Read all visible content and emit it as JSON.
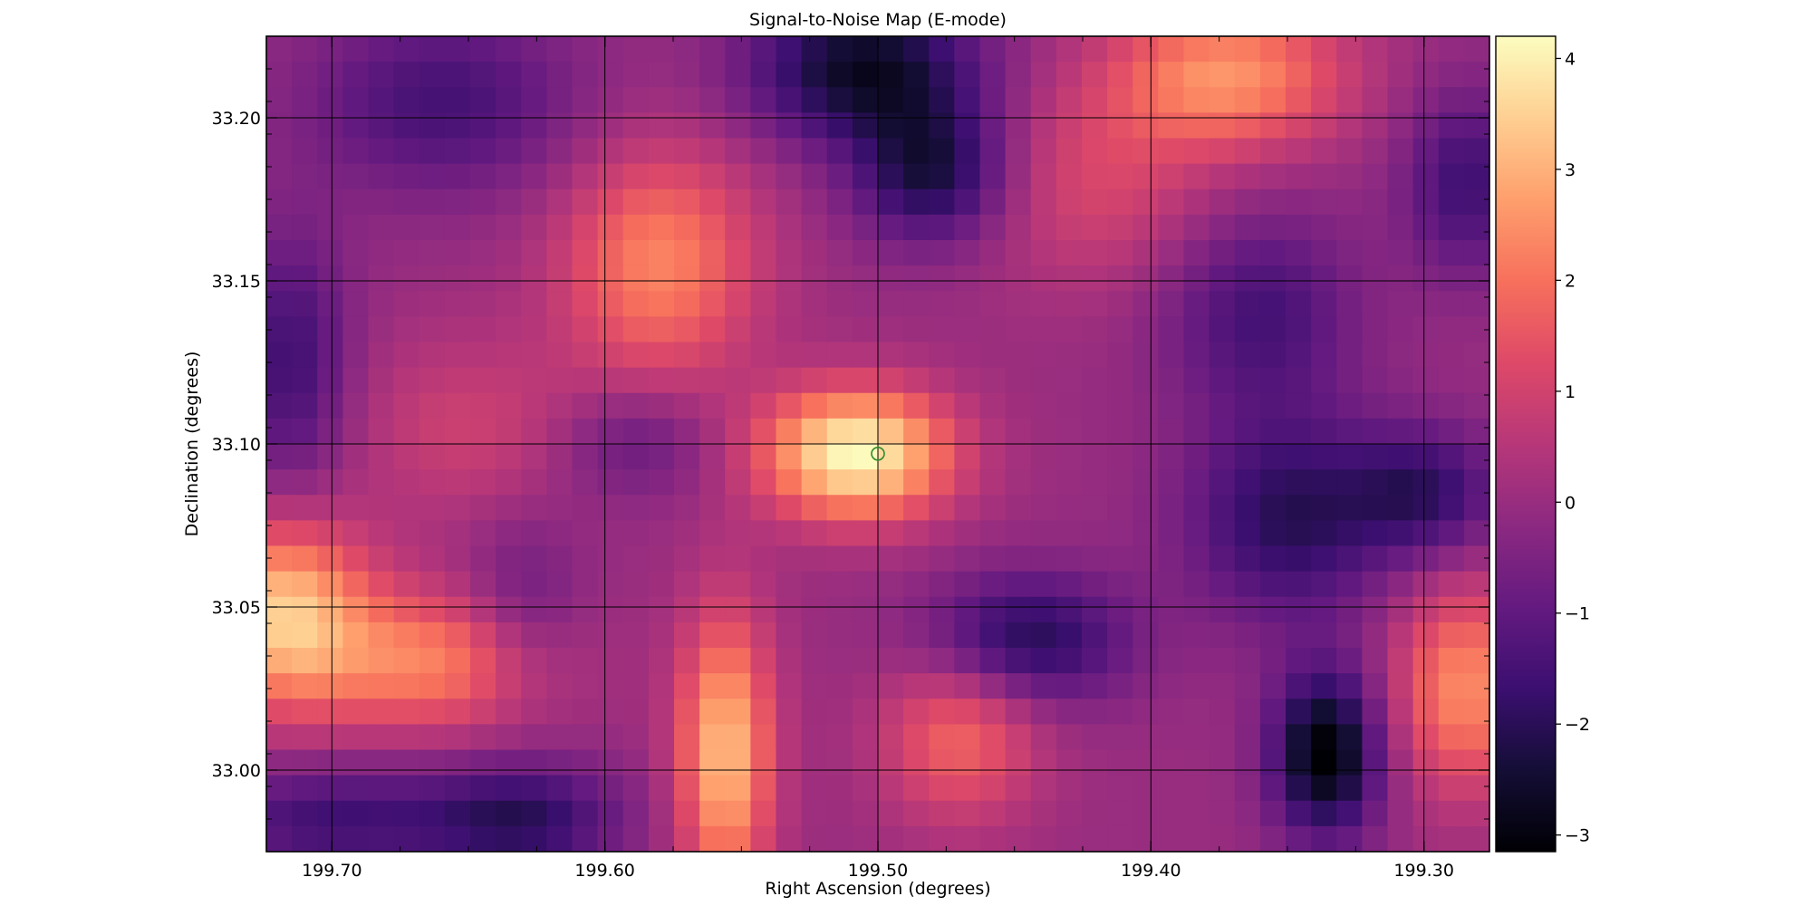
{
  "chart_data": {
    "type": "heatmap",
    "title": "Signal-to-Noise Map (E-mode)",
    "xlabel": "Right Ascension (degrees)",
    "ylabel": "Declination (degrees)",
    "xlim": [
      199.724,
      199.276
    ],
    "ylim": [
      32.975,
      33.225
    ],
    "x_ticks": [
      199.7,
      199.6,
      199.5,
      199.4,
      199.3
    ],
    "x_tick_labels": [
      "199.70",
      "199.60",
      "199.50",
      "199.40",
      "199.30"
    ],
    "y_ticks": [
      33.0,
      33.05,
      33.1,
      33.15,
      33.2
    ],
    "y_tick_labels": [
      "33.00",
      "33.05",
      "33.10",
      "33.15",
      "33.20"
    ],
    "grid": true,
    "colormap": "magma",
    "colorbar": {
      "range": [
        -3.15,
        4.2
      ],
      "ticks": [
        -3,
        -2,
        -1,
        0,
        1,
        2,
        3,
        4
      ],
      "tick_labels": [
        "−3",
        "−2",
        "−1",
        "0",
        "1",
        "2",
        "3",
        "4"
      ]
    },
    "grid_resolution": {
      "columns": 48,
      "rows": 32
    },
    "peak_marker": {
      "ra": 199.5,
      "dec": 33.097,
      "color": "#2e8b2e",
      "shape": "open-circle"
    },
    "features": [
      {
        "ra": 199.508,
        "dec": 33.097,
        "snr": 4.2,
        "sigma_ra": 0.024,
        "sigma_dec": 0.014
      },
      {
        "ra": 199.556,
        "dec": 33.005,
        "snr": 3.2,
        "sigma_ra": 0.012,
        "sigma_dec": 0.03
      },
      {
        "ra": 199.718,
        "dec": 33.048,
        "snr": 3.3,
        "sigma_ra": 0.022,
        "sigma_dec": 0.02
      },
      {
        "ra": 199.664,
        "dec": 33.033,
        "snr": 2.2,
        "sigma_ra": 0.03,
        "sigma_dec": 0.015
      },
      {
        "ra": 199.58,
        "dec": 33.155,
        "snr": 2.3,
        "sigma_ra": 0.025,
        "sigma_dec": 0.025
      },
      {
        "ra": 199.47,
        "dec": 33.01,
        "snr": 1.8,
        "sigma_ra": 0.02,
        "sigma_dec": 0.018
      },
      {
        "ra": 199.372,
        "dec": 33.213,
        "snr": 2.5,
        "sigma_ra": 0.03,
        "sigma_dec": 0.016
      },
      {
        "ra": 199.285,
        "dec": 33.025,
        "snr": 2.4,
        "sigma_ra": 0.018,
        "sigma_dec": 0.022
      },
      {
        "ra": 199.42,
        "dec": 33.18,
        "snr": 1.1,
        "sigma_ra": 0.03,
        "sigma_dec": 0.022
      },
      {
        "ra": 199.65,
        "dec": 33.105,
        "snr": 0.9,
        "sigma_ra": 0.03,
        "sigma_dec": 0.02
      },
      {
        "ra": 199.336,
        "dec": 33.005,
        "snr": -3.2,
        "sigma_ra": 0.014,
        "sigma_dec": 0.018
      },
      {
        "ra": 199.505,
        "dec": 33.215,
        "snr": -2.7,
        "sigma_ra": 0.03,
        "sigma_dec": 0.016
      },
      {
        "ra": 199.48,
        "dec": 33.183,
        "snr": -2.3,
        "sigma_ra": 0.02,
        "sigma_dec": 0.015
      },
      {
        "ra": 199.445,
        "dec": 33.04,
        "snr": -2.1,
        "sigma_ra": 0.026,
        "sigma_dec": 0.014
      },
      {
        "ra": 199.35,
        "dec": 33.077,
        "snr": -2.0,
        "sigma_ra": 0.026,
        "sigma_dec": 0.022
      },
      {
        "ra": 199.3,
        "dec": 33.085,
        "snr": -1.8,
        "sigma_ra": 0.02,
        "sigma_dec": 0.014
      },
      {
        "ra": 199.36,
        "dec": 33.14,
        "snr": -1.5,
        "sigma_ra": 0.025,
        "sigma_dec": 0.022
      },
      {
        "ra": 199.7,
        "dec": 32.985,
        "snr": -1.6,
        "sigma_ra": 0.035,
        "sigma_dec": 0.012
      },
      {
        "ra": 199.63,
        "dec": 32.985,
        "snr": -1.9,
        "sigma_ra": 0.025,
        "sigma_dec": 0.012
      },
      {
        "ra": 199.66,
        "dec": 33.205,
        "snr": -1.5,
        "sigma_ra": 0.035,
        "sigma_dec": 0.02
      },
      {
        "ra": 199.715,
        "dec": 33.125,
        "snr": -1.6,
        "sigma_ra": 0.015,
        "sigma_dec": 0.028
      },
      {
        "ra": 199.285,
        "dec": 33.18,
        "snr": -1.6,
        "sigma_ra": 0.016,
        "sigma_dec": 0.02
      },
      {
        "ra": 199.59,
        "dec": 33.1,
        "snr": -1.0,
        "sigma_ra": 0.02,
        "sigma_dec": 0.012
      },
      {
        "ra": 199.63,
        "dec": 33.05,
        "snr": -0.9,
        "sigma_ra": 0.015,
        "sigma_dec": 0.02
      }
    ]
  }
}
